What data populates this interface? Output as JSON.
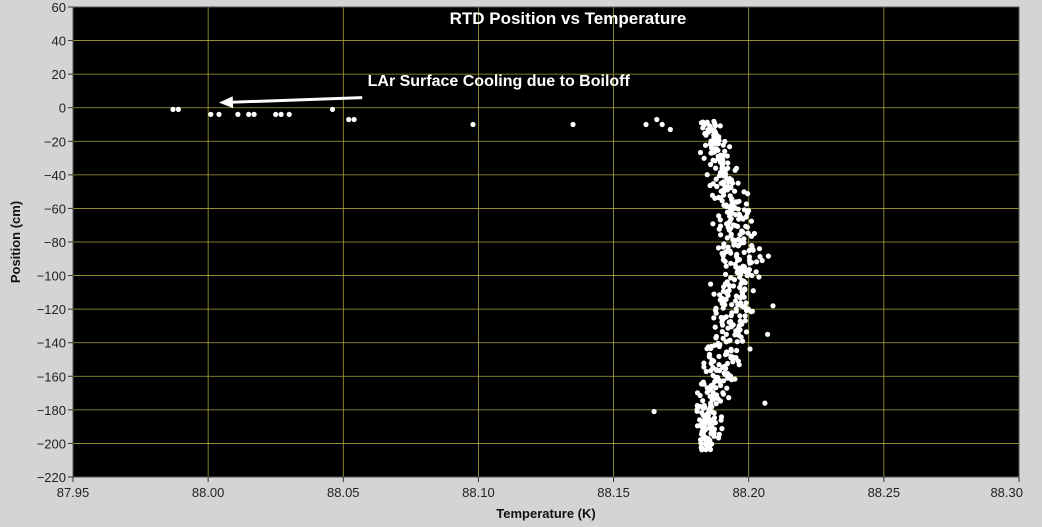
{
  "colors": {
    "background": "#d4d4d4",
    "plot_background": "#000000",
    "grid": "#a8a23a",
    "points": "#ffffff"
  },
  "chart_data": {
    "type": "scatter",
    "title": "RTD Position vs Temperature",
    "xlabel": "Temperature (K)",
    "ylabel": "Position (cm)",
    "xlim": [
      87.95,
      88.3
    ],
    "ylim": [
      -220,
      60
    ],
    "xticks": [
      87.95,
      88.0,
      88.05,
      88.1,
      88.15,
      88.2,
      88.25,
      88.3
    ],
    "xtick_labels": [
      "87.95",
      "88.00",
      "88.05",
      "88.10",
      "88.15",
      "88.20",
      "88.25",
      "88.30"
    ],
    "yticks": [
      -220,
      -200,
      -180,
      -160,
      -140,
      -120,
      -100,
      -80,
      -60,
      -40,
      -20,
      0,
      20,
      40,
      60
    ],
    "ytick_labels": [
      "−220",
      "−200",
      "−180",
      "−160",
      "−140",
      "−120",
      "−100",
      "−80",
      "−60",
      "−40",
      "−20",
      "0",
      "20",
      "40",
      "60"
    ],
    "grid": true,
    "annotation": {
      "text": "LAr Surface Cooling due to Boiloff",
      "text_at": [
        88.059,
        13
      ],
      "arrow_from": [
        88.057,
        6
      ],
      "arrow_to": [
        88.004,
        3
      ]
    },
    "series": [
      {
        "points": [
          [
            87.987,
            -1
          ],
          [
            87.989,
            -1
          ],
          [
            88.001,
            -4
          ],
          [
            88.004,
            -4
          ],
          [
            88.011,
            -4
          ],
          [
            88.015,
            -4
          ],
          [
            88.017,
            -4
          ],
          [
            88.025,
            -4
          ],
          [
            88.027,
            -4
          ],
          [
            88.03,
            -4
          ],
          [
            88.046,
            -1
          ],
          [
            88.052,
            -7
          ],
          [
            88.054,
            -7
          ],
          [
            88.098,
            -10
          ],
          [
            88.135,
            -10
          ],
          [
            88.162,
            -10
          ],
          [
            88.166,
            -7
          ],
          [
            88.168,
            -10
          ],
          [
            88.171,
            -13
          ],
          [
            88.165,
            -181
          ],
          [
            88.209,
            -118
          ],
          [
            88.207,
            -135
          ],
          [
            88.206,
            -176
          ],
          [
            88.204,
            -84
          ],
          [
            88.205,
            -91
          ]
        ]
      }
    ]
  }
}
